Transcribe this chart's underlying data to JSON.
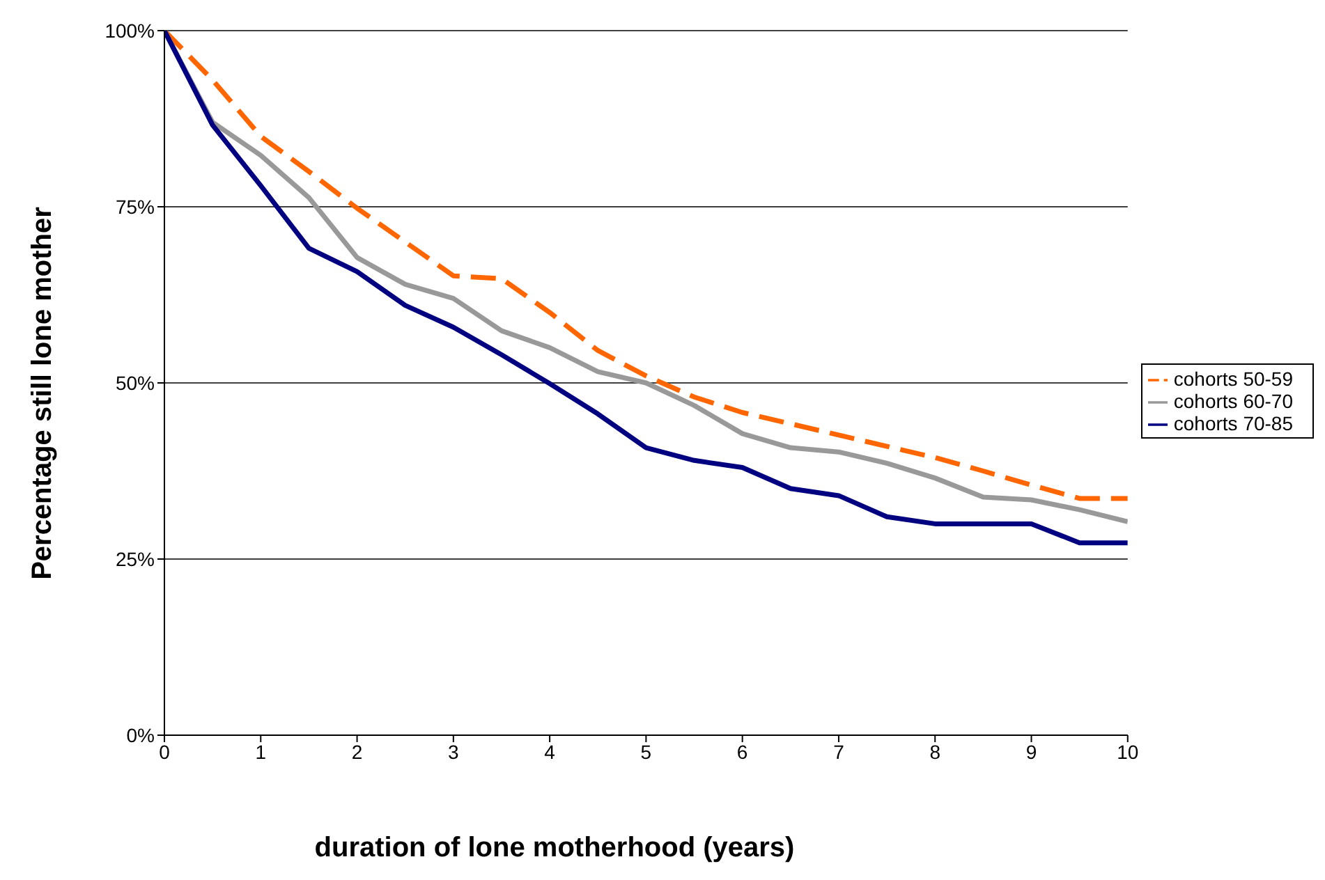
{
  "chart_data": {
    "type": "line",
    "xlabel": "duration of lone motherhood (years)",
    "ylabel": "Percentage still lone mother",
    "x": [
      0,
      0.5,
      1,
      1.5,
      2,
      2.5,
      3,
      3.5,
      4,
      4.5,
      5,
      5.5,
      6,
      6.5,
      7,
      7.5,
      8,
      8.5,
      9,
      9.5,
      10
    ],
    "series": [
      {
        "name": "cohorts 50-59",
        "color": "#ff6600",
        "line_style": "dashed",
        "values": [
          100,
          93,
          85,
          80,
          74.8,
          70,
          65.2,
          64.8,
          60,
          54.6,
          51,
          48,
          45.8,
          44.2,
          42.6,
          41,
          39.4,
          37.5,
          35.5,
          33.6,
          33.6
        ]
      },
      {
        "name": "cohorts 60-70",
        "color": "#999999",
        "line_style": "solid",
        "values": [
          100,
          87,
          82.3,
          76.3,
          67.8,
          64,
          62,
          57.4,
          55,
          51.6,
          50,
          46.8,
          42.8,
          40.8,
          40.2,
          38.6,
          36.5,
          33.8,
          33.4,
          32,
          30.3
        ]
      },
      {
        "name": "cohorts 70-85",
        "color": "#000080",
        "line_style": "solid",
        "values": [
          100,
          86.6,
          78,
          69.1,
          65.8,
          61,
          57.9,
          54,
          49.9,
          45.6,
          40.8,
          39,
          38,
          35,
          34,
          31,
          30,
          30,
          30,
          27.3,
          27.3
        ]
      }
    ],
    "xlim": [
      0,
      10
    ],
    "xticks": [
      0,
      1,
      2,
      3,
      4,
      5,
      6,
      7,
      8,
      9,
      10
    ],
    "ylim": [
      0,
      100
    ],
    "yticks": [
      {
        "value": 0,
        "label": "0%"
      },
      {
        "value": 25,
        "label": "25%"
      },
      {
        "value": 50,
        "label": "50%"
      },
      {
        "value": 75,
        "label": "75%"
      },
      {
        "value": 100,
        "label": "100%"
      }
    ],
    "grid": "y",
    "legend": "right",
    "marker": "none"
  }
}
